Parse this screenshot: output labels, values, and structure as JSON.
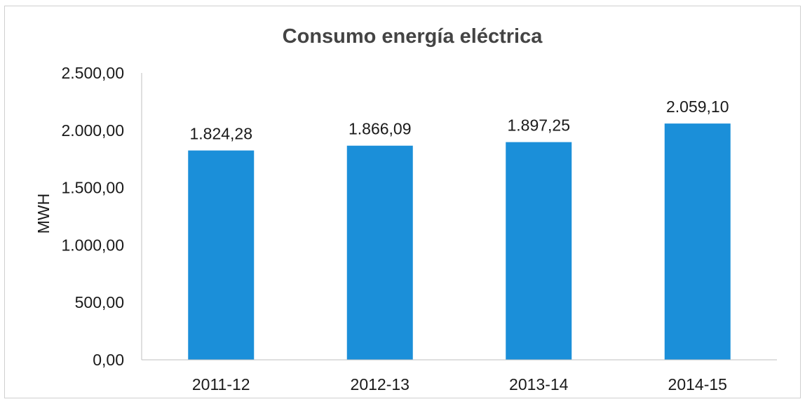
{
  "chart_data": {
    "type": "bar",
    "title": "Consumo energía eléctrica",
    "xlabel": "",
    "ylabel": "MWH",
    "categories": [
      "2011-12",
      "2012-13",
      "2013-14",
      "2014-15"
    ],
    "values": [
      1824.28,
      1866.09,
      1897.25,
      2059.1
    ],
    "data_labels": [
      "1.824,28",
      "1.866,09",
      "1.897,25",
      "2.059,10"
    ],
    "y_ticks": [
      0,
      500,
      1000,
      1500,
      2000,
      2500
    ],
    "y_tick_labels": [
      "0,00",
      "500,00",
      "1.000,00",
      "1.500,00",
      "2.000,00",
      "2.500,00"
    ],
    "ylim": [
      0,
      2500
    ],
    "grid": false,
    "legend": "none",
    "bar_color": "#1b8fd9",
    "axis_color": "#bfbfbf"
  }
}
